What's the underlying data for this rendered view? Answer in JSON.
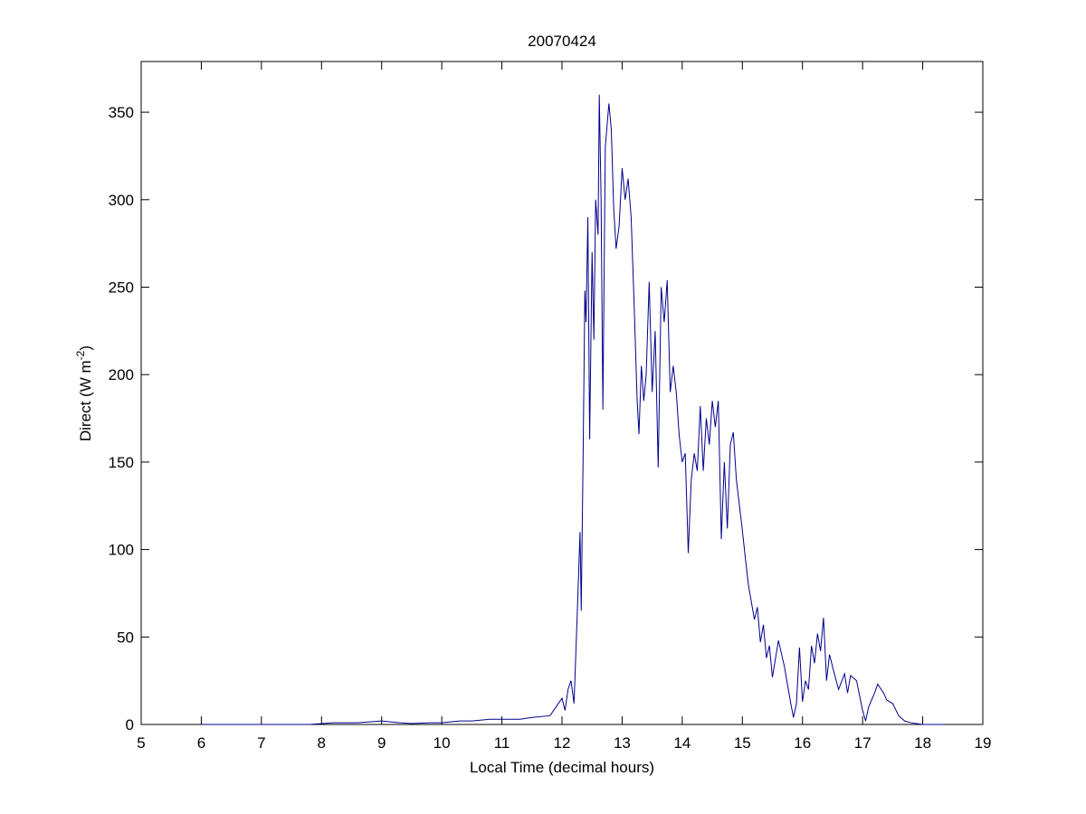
{
  "chart_data": {
    "type": "line",
    "title": "20070424",
    "xlabel": "Local Time (decimal hours)",
    "ylabel": [
      "Direct (W m",
      "-2",
      ")"
    ],
    "xlim": [
      5,
      19
    ],
    "xticks": [
      5,
      6,
      7,
      8,
      9,
      10,
      11,
      12,
      13,
      14,
      15,
      16,
      17,
      18,
      19
    ],
    "ylim": [
      0,
      379
    ],
    "yticks": [
      0,
      50,
      100,
      150,
      200,
      250,
      300,
      350
    ],
    "grid": false,
    "series": [
      {
        "color": "#00008b",
        "x": [
          6.0,
          7.0,
          7.8,
          8.2,
          8.6,
          9.0,
          9.3,
          9.5,
          9.8,
          10.0,
          10.3,
          10.5,
          10.8,
          11.0,
          11.3,
          11.5,
          11.8,
          11.9,
          12.0,
          12.05,
          12.1,
          12.15,
          12.2,
          12.25,
          12.3,
          12.32,
          12.35,
          12.38,
          12.4,
          12.43,
          12.46,
          12.5,
          12.53,
          12.56,
          12.6,
          12.62,
          12.65,
          12.68,
          12.72,
          12.78,
          12.82,
          12.86,
          12.9,
          12.95,
          13.0,
          13.05,
          13.1,
          13.15,
          13.2,
          13.25,
          13.28,
          13.32,
          13.36,
          13.4,
          13.45,
          13.5,
          13.55,
          13.6,
          13.65,
          13.7,
          13.75,
          13.8,
          13.85,
          13.9,
          13.95,
          14.0,
          14.05,
          14.1,
          14.15,
          14.2,
          14.25,
          14.3,
          14.35,
          14.4,
          14.45,
          14.5,
          14.55,
          14.6,
          14.65,
          14.7,
          14.75,
          14.8,
          14.85,
          14.9,
          15.0,
          15.05,
          15.1,
          15.2,
          15.25,
          15.3,
          15.35,
          15.4,
          15.45,
          15.5,
          15.6,
          15.7,
          15.8,
          15.85,
          15.9,
          15.95,
          16.0,
          16.05,
          16.1,
          16.15,
          16.2,
          16.25,
          16.3,
          16.35,
          16.4,
          16.45,
          16.5,
          16.6,
          16.7,
          16.75,
          16.8,
          16.9,
          17.0,
          17.05,
          17.1,
          17.2,
          17.25,
          17.35,
          17.4,
          17.5,
          17.6,
          17.7,
          17.8,
          18.0,
          18.35
        ],
        "values": [
          0,
          0,
          0,
          1,
          1,
          2,
          1,
          0.5,
          1,
          1,
          2,
          2,
          3,
          3,
          3,
          4,
          5,
          10,
          15,
          8,
          20,
          25,
          12,
          60,
          110,
          65,
          150,
          248,
          230,
          290,
          163,
          270,
          220,
          300,
          280,
          360,
          300,
          180,
          330,
          355,
          340,
          295,
          272,
          285,
          318,
          300,
          312,
          290,
          240,
          185,
          166,
          205,
          185,
          200,
          253,
          190,
          225,
          147,
          250,
          230,
          254,
          190,
          205,
          190,
          165,
          150,
          155,
          98,
          140,
          155,
          145,
          182,
          145,
          175,
          160,
          185,
          170,
          185,
          106,
          150,
          112,
          160,
          167,
          140,
          111,
          95,
          80,
          60,
          67,
          47,
          57,
          38,
          45,
          27,
          48,
          33,
          13,
          4,
          12,
          44,
          13,
          25,
          20,
          45,
          35,
          52,
          42,
          61,
          25,
          40,
          33,
          20,
          29,
          18,
          28,
          25,
          8,
          2,
          10,
          18,
          23,
          18,
          14,
          12,
          5,
          2,
          1,
          0,
          0
        ]
      }
    ]
  }
}
